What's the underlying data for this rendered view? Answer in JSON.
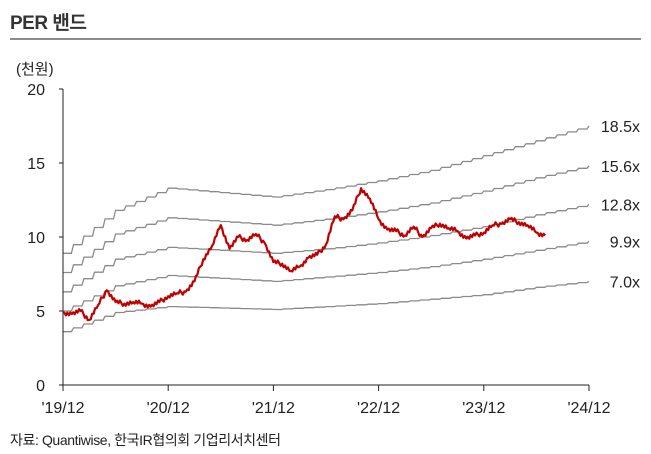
{
  "title": "PER 밴드",
  "unit_label": "(천원)",
  "source": "자료: Quantiwise, 한국IR협의회 기업리서치센터",
  "colors": {
    "price": "#c00000",
    "band": "#8a8a8a",
    "axis": "#222222"
  },
  "chart_data": {
    "type": "line",
    "ylim": [
      0,
      20
    ],
    "yticks": [
      "0",
      "5",
      "10",
      "15",
      "20"
    ],
    "xlim": [
      "2019-12",
      "2024-12"
    ],
    "xticks": [
      "'19/12",
      "'20/12",
      "'21/12",
      "'22/12",
      "'23/12",
      "'24/12"
    ],
    "grid": false,
    "band_series": [
      {
        "name": "18.5x",
        "points": [
          [
            "2019-12",
            8.9
          ],
          [
            "2020-06",
            11.8
          ],
          [
            "2020-12",
            13.3
          ],
          [
            "2021-12",
            12.7
          ],
          [
            "2022-06",
            13.2
          ],
          [
            "2022-12",
            13.8
          ],
          [
            "2023-06",
            14.5
          ],
          [
            "2023-12",
            15.5
          ],
          [
            "2024-06",
            16.5
          ],
          [
            "2024-12",
            17.5
          ]
        ]
      },
      {
        "name": "15.6x",
        "points": [
          [
            "2019-12",
            7.6
          ],
          [
            "2020-06",
            10.2
          ],
          [
            "2020-12",
            11.3
          ],
          [
            "2021-12",
            10.8
          ],
          [
            "2022-06",
            11.2
          ],
          [
            "2022-12",
            11.7
          ],
          [
            "2023-06",
            12.3
          ],
          [
            "2023-12",
            13.1
          ],
          [
            "2024-06",
            14.0
          ],
          [
            "2024-12",
            14.8
          ]
        ]
      },
      {
        "name": "12.8x",
        "points": [
          [
            "2019-12",
            6.3
          ],
          [
            "2020-06",
            8.5
          ],
          [
            "2020-12",
            9.3
          ],
          [
            "2021-12",
            8.9
          ],
          [
            "2022-06",
            9.2
          ],
          [
            "2022-12",
            9.6
          ],
          [
            "2023-06",
            10.1
          ],
          [
            "2023-12",
            10.7
          ],
          [
            "2024-06",
            11.5
          ],
          [
            "2024-12",
            12.2
          ]
        ]
      },
      {
        "name": "9.9x",
        "points": [
          [
            "2019-12",
            5.0
          ],
          [
            "2020-06",
            6.7
          ],
          [
            "2020-12",
            7.4
          ],
          [
            "2021-12",
            7.0
          ],
          [
            "2022-06",
            7.3
          ],
          [
            "2022-12",
            7.6
          ],
          [
            "2023-06",
            8.0
          ],
          [
            "2023-12",
            8.5
          ],
          [
            "2024-06",
            9.1
          ],
          [
            "2024-12",
            9.7
          ]
        ]
      },
      {
        "name": "7.0x",
        "points": [
          [
            "2019-12",
            3.6
          ],
          [
            "2020-06",
            4.9
          ],
          [
            "2020-12",
            5.3
          ],
          [
            "2021-12",
            5.1
          ],
          [
            "2022-06",
            5.3
          ],
          [
            "2022-12",
            5.5
          ],
          [
            "2023-06",
            5.8
          ],
          [
            "2023-12",
            6.1
          ],
          [
            "2024-06",
            6.6
          ],
          [
            "2024-12",
            7.0
          ]
        ]
      }
    ],
    "price_series": {
      "points": [
        [
          "2019-12",
          4.9
        ],
        [
          "2020-01",
          4.8
        ],
        [
          "2020-02",
          5.0
        ],
        [
          "2020-03",
          4.4
        ],
        [
          "2020-04",
          5.4
        ],
        [
          "2020-05",
          6.4
        ],
        [
          "2020-06",
          5.6
        ],
        [
          "2020-07",
          5.5
        ],
        [
          "2020-08",
          5.6
        ],
        [
          "2020-09",
          5.5
        ],
        [
          "2020-10",
          5.3
        ],
        [
          "2020-11",
          5.6
        ],
        [
          "2020-12",
          6.0
        ],
        [
          "2021-01",
          6.2
        ],
        [
          "2021-02",
          6.3
        ],
        [
          "2021-03",
          7.0
        ],
        [
          "2021-04",
          8.5
        ],
        [
          "2021-05",
          9.4
        ],
        [
          "2021-06",
          10.8
        ],
        [
          "2021-07",
          9.2
        ],
        [
          "2021-08",
          10.0
        ],
        [
          "2021-09",
          9.8
        ],
        [
          "2021-10",
          10.2
        ],
        [
          "2021-11",
          9.6
        ],
        [
          "2021-12",
          8.3
        ],
        [
          "2022-01",
          8.2
        ],
        [
          "2022-02",
          7.7
        ],
        [
          "2022-03",
          8.0
        ],
        [
          "2022-04",
          8.6
        ],
        [
          "2022-05",
          8.8
        ],
        [
          "2022-06",
          9.5
        ],
        [
          "2022-07",
          11.4
        ],
        [
          "2022-08",
          11.2
        ],
        [
          "2022-09",
          11.8
        ],
        [
          "2022-10",
          13.3
        ],
        [
          "2022-11",
          12.6
        ],
        [
          "2022-12",
          11.2
        ],
        [
          "2023-01",
          10.5
        ],
        [
          "2023-02",
          10.4
        ],
        [
          "2023-03",
          10.1
        ],
        [
          "2023-04",
          10.7
        ],
        [
          "2023-05",
          10.0
        ],
        [
          "2023-06",
          10.6
        ],
        [
          "2023-07",
          10.9
        ],
        [
          "2023-08",
          10.6
        ],
        [
          "2023-09",
          10.4
        ],
        [
          "2023-10",
          9.9
        ],
        [
          "2023-11",
          10.1
        ],
        [
          "2023-12",
          10.3
        ],
        [
          "2024-01",
          10.8
        ],
        [
          "2024-02",
          10.9
        ],
        [
          "2024-03",
          11.2
        ],
        [
          "2024-04",
          11.0
        ],
        [
          "2024-05",
          10.8
        ],
        [
          "2024-06",
          10.3
        ],
        [
          "2024-07",
          10.1
        ]
      ]
    }
  }
}
